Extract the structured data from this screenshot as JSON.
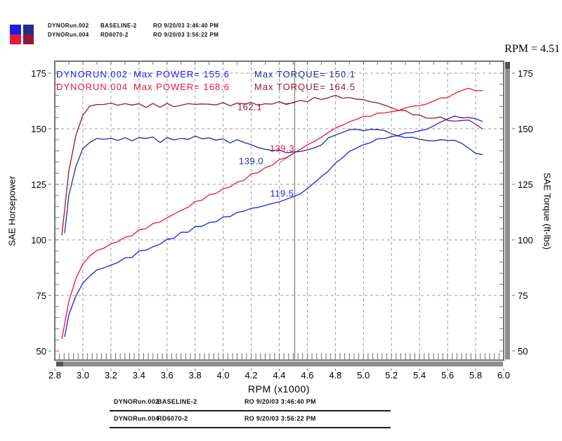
{
  "header": {
    "rpm_readout": "RPM = 4.51",
    "legend_runs": [
      {
        "file": "DYNORun.002",
        "config": "BASELINE-2",
        "ro": "RO 9/20/03 3:46:40 PM"
      },
      {
        "file": "DYNORun.004",
        "config": "RD6070-2",
        "ro": "RO 9/20/03 3:56:22 PM"
      }
    ]
  },
  "colors": {
    "power_002": "#1c1fe0",
    "torque_002": "#232d91",
    "power_004": "#e8173a",
    "torque_004": "#8f1a33",
    "grid": "#9b9b9b",
    "frame": "#757575",
    "tick": "#6f6f6f",
    "cursor": "#8b8b8b",
    "scrollbar": "#8f8f8f",
    "scrollbar_cap": "#555555",
    "text": "#000000"
  },
  "chart_data": {
    "type": "line",
    "title": "",
    "xlabel": "RPM (x1000)",
    "ylabel_left": "SAE Horsepower",
    "ylabel_right": "SAE Torque (ft-lbs)",
    "xlim": [
      2.8,
      6.0
    ],
    "ylim": [
      50,
      175
    ],
    "x_ticks": [
      "2.8",
      "3.0",
      "3.2",
      "3.4",
      "3.6",
      "3.8",
      "4.0",
      "4.2",
      "4.4",
      "4.6",
      "4.8",
      "5.0",
      "5.2",
      "5.4",
      "5.6",
      "5.8",
      "6.0"
    ],
    "y_ticks": [
      "175",
      "150",
      "125",
      "100",
      "75",
      "50"
    ],
    "y_tick_values": [
      175,
      150,
      125,
      100,
      75,
      50
    ],
    "grid": "dashed",
    "legend_position": "top-left-outside",
    "annotations": [
      {
        "run": "DYNORUN.002",
        "power": "Max POWER= 155.6",
        "torque": "Max TORQUE= 150.1",
        "power_color_key": "power_002",
        "torque_color_key": "torque_002"
      },
      {
        "run": "DYNORUN.004",
        "power": "Max POWER= 168.6",
        "torque": "Max TORQUE= 164.5",
        "power_color_key": "power_004",
        "torque_color_key": "torque_004"
      }
    ],
    "cursor": {
      "rpm": 4.51,
      "readings": [
        {
          "text": "162.1",
          "series": "torque_004",
          "rpm": 4.19,
          "value": 159.7
        },
        {
          "text": "139.3",
          "series": "power_004",
          "rpm": 4.42,
          "value": 141.2
        },
        {
          "text": "139.0",
          "series": "torque_002",
          "rpm": 4.2,
          "value": 135.6
        },
        {
          "text": "119.5",
          "series": "power_002",
          "rpm": 4.42,
          "value": 121.0
        }
      ],
      "leaders": [
        {
          "x1": 4.415,
          "y1": 161.3,
          "x2": 4.51,
          "y2": 161.6
        },
        {
          "x1": 4.4,
          "y1": 134.6,
          "x2": 4.51,
          "y2": 139.2
        }
      ]
    },
    "series": [
      {
        "id": "torque_004",
        "name": "DYNORun.004 Torque",
        "unit": "ft-lbs",
        "points": [
          [
            2.85,
            102.0
          ],
          [
            2.9,
            131.0
          ],
          [
            2.95,
            147.0
          ],
          [
            3.0,
            156.0
          ],
          [
            3.05,
            159.8
          ],
          [
            3.1,
            160.8
          ],
          [
            3.15,
            160.2
          ],
          [
            3.2,
            160.9
          ],
          [
            3.25,
            160.1
          ],
          [
            3.3,
            160.6
          ],
          [
            3.35,
            160.3
          ],
          [
            3.4,
            161.0
          ],
          [
            3.45,
            160.0
          ],
          [
            3.5,
            160.7
          ],
          [
            3.55,
            160.2
          ],
          [
            3.6,
            160.9
          ],
          [
            3.65,
            160.4
          ],
          [
            3.7,
            161.2
          ],
          [
            3.75,
            160.6
          ],
          [
            3.8,
            161.4
          ],
          [
            3.85,
            160.8
          ],
          [
            3.9,
            161.6
          ],
          [
            3.95,
            160.9
          ],
          [
            4.0,
            161.2
          ],
          [
            4.05,
            160.7
          ],
          [
            4.1,
            161.5
          ],
          [
            4.15,
            161.0
          ],
          [
            4.2,
            161.8
          ],
          [
            4.25,
            161.2
          ],
          [
            4.3,
            161.9
          ],
          [
            4.35,
            161.4
          ],
          [
            4.4,
            162.0
          ],
          [
            4.45,
            161.6
          ],
          [
            4.5,
            162.0
          ],
          [
            4.55,
            162.4
          ],
          [
            4.6,
            162.8
          ],
          [
            4.65,
            163.3
          ],
          [
            4.7,
            163.8
          ],
          [
            4.75,
            164.2
          ],
          [
            4.8,
            164.5
          ],
          [
            4.85,
            164.3
          ],
          [
            4.9,
            164.0
          ],
          [
            4.95,
            163.6
          ],
          [
            5.0,
            163.0
          ],
          [
            5.05,
            162.2
          ],
          [
            5.1,
            161.3
          ],
          [
            5.15,
            160.4
          ],
          [
            5.2,
            159.5
          ],
          [
            5.25,
            158.7
          ],
          [
            5.3,
            158.0
          ],
          [
            5.35,
            157.0
          ],
          [
            5.4,
            156.2
          ],
          [
            5.45,
            155.5
          ],
          [
            5.5,
            155.0
          ],
          [
            5.55,
            154.6
          ],
          [
            5.6,
            154.2
          ],
          [
            5.65,
            154.0
          ],
          [
            5.7,
            153.8
          ],
          [
            5.75,
            154.0
          ],
          [
            5.8,
            151.5
          ],
          [
            5.85,
            149.8
          ]
        ]
      },
      {
        "id": "power_004",
        "name": "DYNORun.004 Power",
        "unit": "hp",
        "points": [
          [
            2.85,
            55.3
          ],
          [
            2.9,
            72.3
          ],
          [
            2.95,
            82.6
          ],
          [
            3.0,
            89.1
          ],
          [
            3.05,
            92.8
          ],
          [
            3.1,
            94.9
          ],
          [
            3.15,
            96.1
          ],
          [
            3.2,
            98.0
          ],
          [
            3.25,
            99.1
          ],
          [
            3.3,
            100.9
          ],
          [
            3.35,
            102.2
          ],
          [
            3.4,
            104.2
          ],
          [
            3.45,
            105.1
          ],
          [
            3.5,
            107.1
          ],
          [
            3.55,
            108.3
          ],
          [
            3.6,
            110.3
          ],
          [
            3.65,
            111.5
          ],
          [
            3.7,
            113.6
          ],
          [
            3.75,
            114.7
          ],
          [
            3.8,
            116.8
          ],
          [
            3.85,
            117.9
          ],
          [
            3.9,
            120.0
          ],
          [
            3.95,
            121.0
          ],
          [
            4.0,
            122.8
          ],
          [
            4.05,
            123.9
          ],
          [
            4.1,
            126.1
          ],
          [
            4.15,
            127.2
          ],
          [
            4.2,
            129.4
          ],
          [
            4.25,
            130.4
          ],
          [
            4.3,
            132.6
          ],
          [
            4.35,
            133.7
          ],
          [
            4.4,
            135.7
          ],
          [
            4.45,
            136.9
          ],
          [
            4.5,
            138.8
          ],
          [
            4.55,
            140.7
          ],
          [
            4.6,
            142.6
          ],
          [
            4.65,
            144.6
          ],
          [
            4.7,
            146.6
          ],
          [
            4.75,
            148.5
          ],
          [
            4.8,
            150.3
          ],
          [
            4.85,
            151.7
          ],
          [
            4.9,
            153.0
          ],
          [
            4.95,
            154.2
          ],
          [
            5.0,
            155.2
          ],
          [
            5.05,
            156.0
          ],
          [
            5.1,
            156.6
          ],
          [
            5.15,
            157.3
          ],
          [
            5.2,
            157.9
          ],
          [
            5.25,
            158.6
          ],
          [
            5.3,
            159.4
          ],
          [
            5.35,
            159.9
          ],
          [
            5.4,
            160.6
          ],
          [
            5.45,
            161.4
          ],
          [
            5.5,
            162.3
          ],
          [
            5.55,
            163.4
          ],
          [
            5.6,
            164.4
          ],
          [
            5.65,
            165.7
          ],
          [
            5.7,
            166.9
          ],
          [
            5.75,
            168.6
          ],
          [
            5.8,
            167.3
          ],
          [
            5.85,
            166.9
          ]
        ]
      },
      {
        "id": "torque_002",
        "name": "DYNORun.002 Torque",
        "unit": "ft-lbs",
        "points": [
          [
            2.87,
            103.0
          ],
          [
            2.9,
            120.0
          ],
          [
            2.95,
            133.0
          ],
          [
            3.0,
            141.0
          ],
          [
            3.05,
            144.5
          ],
          [
            3.1,
            146.2
          ],
          [
            3.15,
            145.0
          ],
          [
            3.2,
            146.0
          ],
          [
            3.25,
            144.8
          ],
          [
            3.3,
            145.8
          ],
          [
            3.35,
            144.6
          ],
          [
            3.4,
            146.2
          ],
          [
            3.45,
            144.9
          ],
          [
            3.5,
            145.7
          ],
          [
            3.55,
            144.5
          ],
          [
            3.6,
            145.9
          ],
          [
            3.65,
            144.6
          ],
          [
            3.7,
            146.3
          ],
          [
            3.75,
            145.0
          ],
          [
            3.8,
            146.5
          ],
          [
            3.85,
            144.8
          ],
          [
            3.9,
            145.5
          ],
          [
            3.95,
            144.3
          ],
          [
            4.0,
            144.9
          ],
          [
            4.05,
            143.8
          ],
          [
            4.1,
            144.4
          ],
          [
            4.15,
            143.2
          ],
          [
            4.2,
            142.6
          ],
          [
            4.25,
            141.8
          ],
          [
            4.3,
            141.0
          ],
          [
            4.35,
            140.3
          ],
          [
            4.4,
            139.8
          ],
          [
            4.45,
            139.3
          ],
          [
            4.5,
            139.0
          ],
          [
            4.55,
            139.6
          ],
          [
            4.6,
            140.6
          ],
          [
            4.65,
            141.9
          ],
          [
            4.7,
            143.4
          ],
          [
            4.75,
            145.2
          ],
          [
            4.8,
            147.0
          ],
          [
            4.85,
            148.6
          ],
          [
            4.9,
            149.6
          ],
          [
            4.95,
            150.1
          ],
          [
            5.0,
            149.6
          ],
          [
            5.05,
            149.0
          ],
          [
            5.1,
            149.4
          ],
          [
            5.15,
            148.5
          ],
          [
            5.2,
            147.8
          ],
          [
            5.25,
            147.2
          ],
          [
            5.3,
            146.4
          ],
          [
            5.35,
            145.6
          ],
          [
            5.4,
            145.0
          ],
          [
            5.45,
            144.4
          ],
          [
            5.5,
            144.6
          ],
          [
            5.55,
            145.0
          ],
          [
            5.6,
            144.8
          ],
          [
            5.65,
            144.5
          ],
          [
            5.7,
            142.8
          ],
          [
            5.75,
            141.2
          ],
          [
            5.8,
            139.6
          ],
          [
            5.85,
            138.0
          ]
        ]
      },
      {
        "id": "power_002",
        "name": "DYNORun.002 Power",
        "unit": "hp",
        "points": [
          [
            2.87,
            56.3
          ],
          [
            2.9,
            66.3
          ],
          [
            2.95,
            74.7
          ],
          [
            3.0,
            80.5
          ],
          [
            3.05,
            83.9
          ],
          [
            3.1,
            86.3
          ],
          [
            3.15,
            87.0
          ],
          [
            3.2,
            89.0
          ],
          [
            3.25,
            89.6
          ],
          [
            3.3,
            91.6
          ],
          [
            3.35,
            92.2
          ],
          [
            3.4,
            94.6
          ],
          [
            3.45,
            95.2
          ],
          [
            3.5,
            97.1
          ],
          [
            3.55,
            97.7
          ],
          [
            3.6,
            100.0
          ],
          [
            3.65,
            100.5
          ],
          [
            3.7,
            103.1
          ],
          [
            3.75,
            103.5
          ],
          [
            3.8,
            106.0
          ],
          [
            3.85,
            106.1
          ],
          [
            3.9,
            108.0
          ],
          [
            3.95,
            108.5
          ],
          [
            4.0,
            110.4
          ],
          [
            4.05,
            110.9
          ],
          [
            4.1,
            112.7
          ],
          [
            4.15,
            113.2
          ],
          [
            4.2,
            114.0
          ],
          [
            4.25,
            114.7
          ],
          [
            4.3,
            115.4
          ],
          [
            4.35,
            116.2
          ],
          [
            4.4,
            117.1
          ],
          [
            4.45,
            118.0
          ],
          [
            4.5,
            119.1
          ],
          [
            4.55,
            120.9
          ],
          [
            4.6,
            123.1
          ],
          [
            4.65,
            125.6
          ],
          [
            4.7,
            128.3
          ],
          [
            4.75,
            131.3
          ],
          [
            4.8,
            134.3
          ],
          [
            4.85,
            137.2
          ],
          [
            4.9,
            139.6
          ],
          [
            4.95,
            141.5
          ],
          [
            5.0,
            142.4
          ],
          [
            5.05,
            143.3
          ],
          [
            5.1,
            145.1
          ],
          [
            5.15,
            145.6
          ],
          [
            5.2,
            146.3
          ],
          [
            5.25,
            147.1
          ],
          [
            5.3,
            147.7
          ],
          [
            5.35,
            148.3
          ],
          [
            5.4,
            149.1
          ],
          [
            5.45,
            149.8
          ],
          [
            5.5,
            151.4
          ],
          [
            5.55,
            153.2
          ],
          [
            5.6,
            154.4
          ],
          [
            5.65,
            155.5
          ],
          [
            5.7,
            155.0
          ],
          [
            5.75,
            154.6
          ],
          [
            5.8,
            154.2
          ],
          [
            5.85,
            153.7
          ]
        ]
      }
    ]
  },
  "footer_table": {
    "rows": [
      {
        "file": "DYNORun.002",
        "config": "BASELINE-2",
        "ro": "RO 9/20/03 3:46:40 PM"
      },
      {
        "file": "DYNORun.004",
        "config": "RD6070-2",
        "ro": "RO 9/20/03 3:56:22 PM"
      }
    ]
  }
}
